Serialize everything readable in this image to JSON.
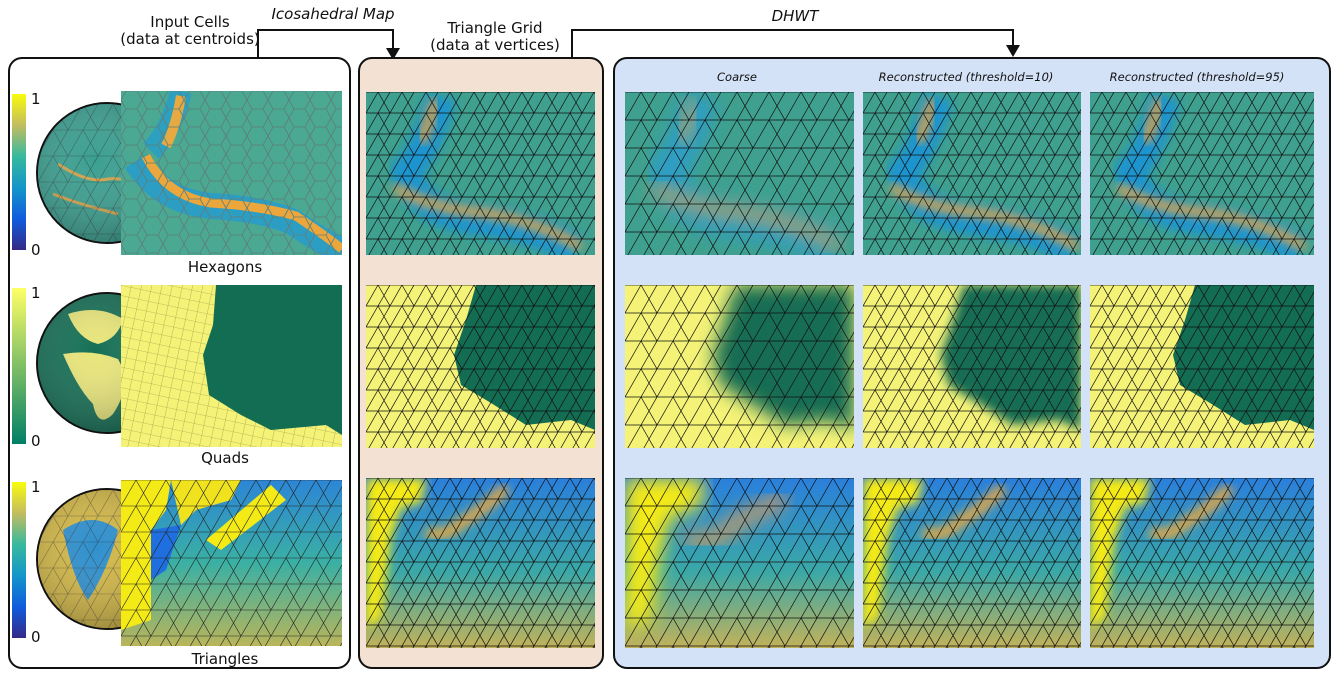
{
  "headers": {
    "input_cells": [
      "Input Cells",
      "(data at centroids)"
    ],
    "icosahedral_map": "Icosahedral Map",
    "triangle_grid": [
      "Triangle Grid",
      "(data at vertices)"
    ],
    "dhwt": "DHWT"
  },
  "columns": {
    "coarse": "Coarse",
    "recon10": "Reconstructed (threshold=10)",
    "recon95": "Reconstructed (threshold=95)"
  },
  "rows": [
    {
      "name": "Hexagons",
      "cb_max": "1",
      "cb_min": "0",
      "colormap": "parula"
    },
    {
      "name": "Quads",
      "cb_max": "1",
      "cb_min": "0",
      "colormap": "summer"
    },
    {
      "name": "Triangles",
      "cb_max": "1",
      "cb_min": "0",
      "colormap": "parula"
    }
  ],
  "colors": {
    "triangle_panel_bg": "#f3e1d4",
    "dhwt_panel_bg": "#d4e2f7",
    "quad_yellow": "#f4f277",
    "quad_green": "#136d52"
  }
}
